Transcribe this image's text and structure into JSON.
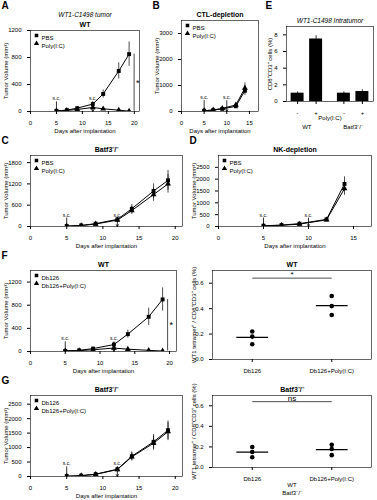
{
  "chart_data": [
    {
      "type": "line",
      "panel": "A",
      "subtitle": "WT1-C1498 tumor",
      "title": "WT",
      "x_label": "Days after implantation",
      "y_label": "Tumor Volume (mm³)",
      "xlim": [
        0,
        21
      ],
      "xticks": [
        0,
        5,
        10,
        15,
        20
      ],
      "ylim": [
        0,
        1200
      ],
      "yticks": [
        0,
        400,
        800,
        1200
      ],
      "legend": "upper left",
      "series": [
        {
          "name": "PBS",
          "color": "black",
          "marker": "square",
          "x": [
            5,
            7,
            9,
            12,
            14,
            17,
            19
          ],
          "values": [
            10,
            20,
            50,
            110,
            260,
            600,
            850
          ],
          "errors": [
            5,
            8,
            15,
            30,
            60,
            120,
            180
          ]
        },
        {
          "name": "Poly(I:C)",
          "color": "black",
          "marker": "triangle",
          "x": [
            5,
            7,
            9,
            12,
            14,
            17,
            19
          ],
          "values": [
            10,
            15,
            30,
            60,
            40,
            20,
            5
          ],
          "errors": [
            5,
            5,
            10,
            20,
            15,
            8,
            3
          ]
        }
      ],
      "arrows": [
        {
          "x": 5,
          "label": "s.c."
        },
        {
          "x": 12,
          "label": "s.c."
        }
      ],
      "significance": "*"
    },
    {
      "type": "line",
      "panel": "B",
      "title": "CTL-depletion",
      "x_label": "Days after implantation",
      "y_label": "Tumor Volume (mm³)",
      "xlim": [
        0,
        17
      ],
      "xticks": [
        0,
        5,
        10,
        15
      ],
      "ylim": [
        0,
        3500
      ],
      "yticks": [
        0,
        1000,
        2000,
        3000
      ],
      "legend": "upper left",
      "series": [
        {
          "name": "PBS",
          "color": "black",
          "marker": "square",
          "x": [
            5,
            7,
            9,
            12,
            14
          ],
          "values": [
            30,
            50,
            100,
            200,
            800
          ],
          "errors": [
            10,
            15,
            30,
            60,
            180
          ]
        },
        {
          "name": "Poly(I:C)",
          "color": "black",
          "marker": "triangle",
          "x": [
            5,
            7,
            9,
            12,
            14
          ],
          "values": [
            30,
            60,
            120,
            250,
            900
          ],
          "errors": [
            10,
            20,
            35,
            70,
            200
          ]
        }
      ],
      "arrows": [
        {
          "x": 5,
          "label": "s.c."
        },
        {
          "x": 10,
          "label": "s.c."
        }
      ]
    },
    {
      "type": "bar",
      "panel": "E",
      "subtitle": "WT1-C1498 Intratumor",
      "x_label": "Poly(I:C)",
      "y_label": "CD8⁺CD3⁺ cells (%)",
      "categories": [
        "-",
        "+",
        "-",
        "+"
      ],
      "groups": [
        "WT",
        "WT",
        "Batf3⁻/⁻",
        "Batf3⁻/⁻"
      ],
      "values": [
        1.0,
        7.5,
        1.0,
        1.2
      ],
      "errors": [
        0.15,
        0.4,
        0.15,
        0.2
      ],
      "color": "black",
      "ylim": [
        0,
        9
      ],
      "yticks": [
        0,
        2,
        4,
        6,
        8
      ]
    },
    {
      "type": "line",
      "panel": "C",
      "title": "Batf3⁻/⁻",
      "x_label": "Days after implantation",
      "y_label": "Tumor Volume (mm³)",
      "xlim": [
        0,
        21
      ],
      "xticks": [
        0,
        5,
        10,
        15,
        20
      ],
      "ylim": [
        0,
        2000
      ],
      "yticks": [
        0,
        600,
        1200,
        1800
      ],
      "legend": "upper left",
      "series": [
        {
          "name": "PBS",
          "color": "black",
          "marker": "square",
          "x": [
            5,
            7,
            9,
            12,
            14,
            17,
            19
          ],
          "values": [
            10,
            30,
            80,
            200,
            500,
            1000,
            1300
          ],
          "errors": [
            5,
            10,
            25,
            60,
            120,
            200,
            280
          ]
        },
        {
          "name": "Poly(I:C)",
          "color": "black",
          "marker": "triangle",
          "x": [
            5,
            7,
            9,
            12,
            14,
            17,
            19
          ],
          "values": [
            10,
            25,
            70,
            180,
            450,
            900,
            1200
          ],
          "errors": [
            5,
            8,
            20,
            55,
            110,
            190,
            260
          ]
        }
      ],
      "arrows": [
        {
          "x": 5,
          "label": "s.c."
        },
        {
          "x": 12,
          "label": "s.c."
        }
      ]
    },
    {
      "type": "line",
      "panel": "D",
      "title": "NK-depletion",
      "x_label": "Days after implantation",
      "y_label": "Tumor Volume (mm³)",
      "xlim": [
        0,
        17
      ],
      "xticks": [
        0,
        5,
        10,
        15
      ],
      "ylim": [
        0,
        3000
      ],
      "yticks": [
        0,
        500,
        1000,
        1500,
        2000,
        2500
      ],
      "legend": "upper left",
      "series": [
        {
          "name": "PBS",
          "color": "black",
          "marker": "square",
          "x": [
            5,
            7,
            9,
            12,
            14
          ],
          "values": [
            30,
            60,
            120,
            300,
            1800
          ],
          "errors": [
            10,
            20,
            40,
            80,
            300
          ]
        },
        {
          "name": "Poly(I:C)",
          "color": "black",
          "marker": "triangle",
          "x": [
            5,
            7,
            9,
            12,
            14
          ],
          "values": [
            30,
            50,
            100,
            280,
            1600
          ],
          "errors": [
            10,
            15,
            35,
            75,
            280
          ]
        }
      ],
      "arrows": [
        {
          "x": 5,
          "label": "s.c."
        },
        {
          "x": 10,
          "label": "s.c."
        }
      ]
    },
    {
      "type": "line",
      "panel": "F",
      "title": "WT",
      "x_label": "Days after implantation",
      "y_label": "Tumor Volume (mm³)",
      "xlim": [
        0,
        21
      ],
      "xticks": [
        0,
        5,
        10,
        15,
        20
      ],
      "ylim": [
        0,
        1400
      ],
      "yticks": [
        0,
        400,
        800,
        1200
      ],
      "legend": "upper left",
      "series": [
        {
          "name": "Db126",
          "color": "black",
          "marker": "square",
          "x": [
            5,
            7,
            9,
            12,
            14,
            17,
            19
          ],
          "values": [
            10,
            20,
            50,
            120,
            300,
            600,
            900
          ],
          "errors": [
            5,
            8,
            15,
            35,
            70,
            150,
            200
          ]
        },
        {
          "name": "Db126+Poly(I:C)",
          "color": "black",
          "marker": "triangle",
          "x": [
            5,
            7,
            9,
            12,
            14,
            17,
            19
          ],
          "values": [
            10,
            15,
            30,
            60,
            40,
            20,
            8
          ],
          "errors": [
            5,
            5,
            10,
            20,
            12,
            8,
            3
          ]
        }
      ],
      "arrows": [
        {
          "x": 5,
          "label": "s.c."
        },
        {
          "x": 12,
          "label": "s.c."
        }
      ],
      "significance": "*"
    },
    {
      "type": "scatter",
      "title": "WT",
      "y_label": "WT1 tetramer⁺ / CD8⁺CD3⁺ cells (%)",
      "categories": [
        "Db126",
        "Db126+Poly(I:C)"
      ],
      "values": [
        [
          0.12,
          0.18,
          0.22
        ],
        [
          0.35,
          0.42,
          0.5
        ]
      ],
      "means": [
        0.17333333333333334,
        0.42333333333333334
      ],
      "color": "black",
      "marker": "circle",
      "ylim": [
        0.0,
        0.7
      ],
      "yticks": [
        {
          "value": 0,
          "label": "0.0"
        },
        0.2,
        0.4,
        0.6
      ],
      "significance": {
        "y": 0.64,
        "label": "*"
      }
    },
    {
      "type": "line",
      "panel": "G",
      "title": "Batf3⁻/⁻",
      "x_label": "Days after implantation",
      "y_label": "Tumor Volume (mm³)",
      "xlim": [
        0,
        21
      ],
      "xticks": [
        0,
        5,
        10,
        15,
        20
      ],
      "ylim": [
        0,
        2800
      ],
      "yticks": [
        0,
        500,
        1000,
        1500,
        2000,
        2500
      ],
      "legend": "upper left",
      "series": [
        {
          "name": "Db126",
          "color": "black",
          "marker": "square",
          "x": [
            5,
            7,
            9,
            12,
            14,
            17,
            19
          ],
          "values": [
            10,
            30,
            80,
            250,
            700,
            1200,
            1600
          ],
          "errors": [
            5,
            10,
            25,
            70,
            150,
            250,
            320
          ]
        },
        {
          "name": "Db126+Poly(I:C)",
          "color": "black",
          "marker": "triangle",
          "x": [
            5,
            7,
            9,
            12,
            14,
            17,
            19
          ],
          "values": [
            10,
            25,
            75,
            240,
            680,
            1150,
            1550
          ],
          "errors": [
            5,
            9,
            22,
            65,
            140,
            240,
            310
          ]
        }
      ],
      "arrows": [
        {
          "x": 5,
          "label": "s.c."
        },
        {
          "x": 12,
          "label": "s.c."
        }
      ]
    },
    {
      "type": "scatter",
      "title": "Batf3⁻/⁻",
      "y_label": "WT1 tetramer⁺ / CD8⁺CD3⁺ cells (%)",
      "categories": [
        "Db126",
        "Db126+Poly(I:C)"
      ],
      "values": [
        [
          0.1,
          0.15,
          0.2
        ],
        [
          0.12,
          0.18,
          0.22
        ]
      ],
      "means": [
        0.15,
        0.17333333333333334
      ],
      "color": "black",
      "marker": "circle",
      "ylim": [
        0.0,
        0.7
      ],
      "yticks": [
        {
          "value": 0,
          "label": "0.0"
        },
        0.2,
        0.4,
        0.6
      ],
      "significance": {
        "y": 0.64,
        "label": "ns"
      },
      "annotations": [
        "WT",
        "Batf3⁻/⁻"
      ]
    }
  ]
}
